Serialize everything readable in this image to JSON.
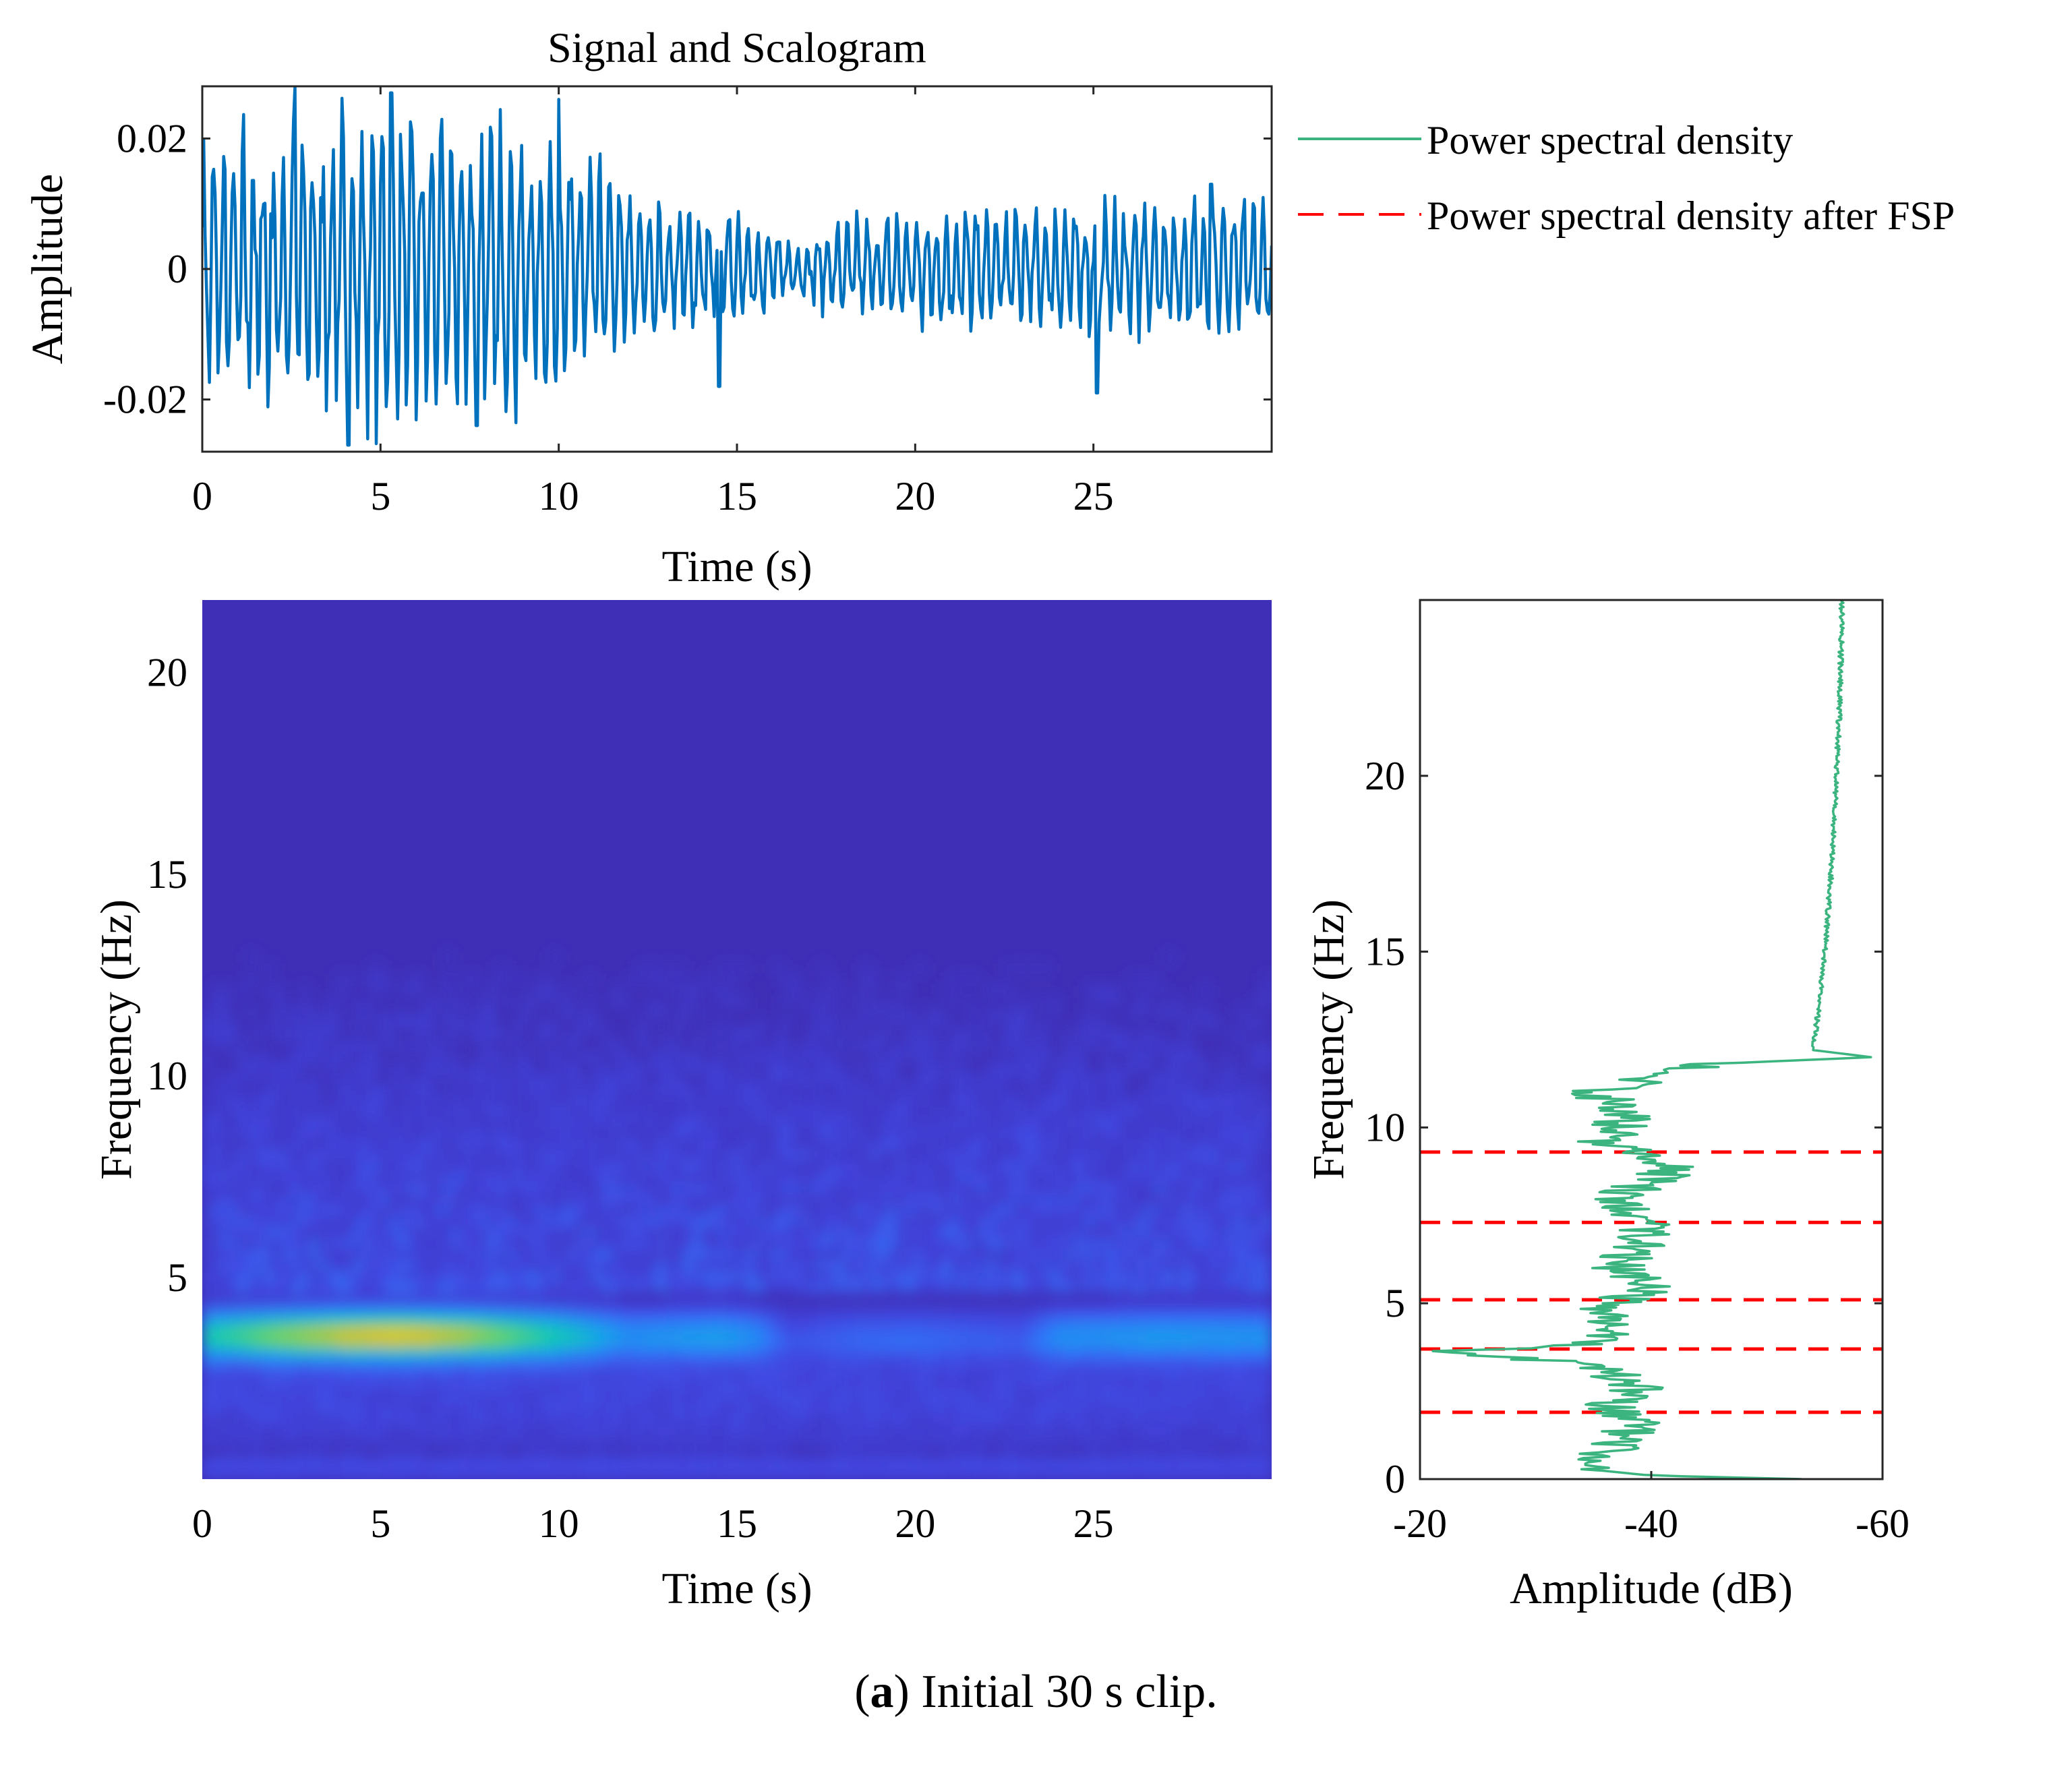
{
  "caption": {
    "letter": "a",
    "text": "Initial 30 s clip."
  },
  "chart_data": [
    {
      "type": "line",
      "id": "signal",
      "title": "Signal and Scalogram",
      "xlabel": "Time (s)",
      "ylabel": "Amplitude",
      "xlim": [
        0,
        30
      ],
      "ylim": [
        -0.028,
        0.028
      ],
      "xticks": [
        0,
        5,
        10,
        15,
        20,
        25
      ],
      "yticks": [
        0.02,
        0,
        -0.02
      ],
      "ytick_labels": [
        "0.02",
        "0",
        "-0.02"
      ],
      "color": "#0072BD",
      "sample_rate_hz": 25,
      "envelope": [
        {
          "t": 0,
          "a": 0.019
        },
        {
          "t": 2.5,
          "a": 0.021
        },
        {
          "t": 5,
          "a": 0.023
        },
        {
          "t": 8,
          "a": 0.021
        },
        {
          "t": 10,
          "a": 0.019
        },
        {
          "t": 12,
          "a": 0.011
        },
        {
          "t": 15,
          "a": 0.008
        },
        {
          "t": 16.5,
          "a": 0.004
        },
        {
          "t": 18,
          "a": 0.007
        },
        {
          "t": 21,
          "a": 0.009
        },
        {
          "t": 24,
          "a": 0.009
        },
        {
          "t": 27,
          "a": 0.01
        },
        {
          "t": 30,
          "a": 0.01
        }
      ],
      "dominant_frequency_hz": 3.6,
      "peaks": [
        {
          "t": 2.6,
          "y": 0.028
        },
        {
          "t": 4.1,
          "y": -0.027
        },
        {
          "t": 5.3,
          "y": 0.027
        },
        {
          "t": 7.7,
          "y": -0.024
        },
        {
          "t": 10.0,
          "y": 0.026
        },
        {
          "t": 14.5,
          "y": -0.018
        },
        {
          "t": 25.1,
          "y": -0.019
        },
        {
          "t": 28.3,
          "y": 0.013
        }
      ]
    },
    {
      "type": "heatmap",
      "id": "scalogram",
      "xlabel": "Time (s)",
      "ylabel": "Frequency (Hz)",
      "xlim": [
        0,
        30
      ],
      "ylim": [
        0,
        21.8
      ],
      "xticks": [
        0,
        5,
        10,
        15,
        20,
        25
      ],
      "yticks": [
        5,
        10,
        15,
        20
      ],
      "colormap": "parula",
      "band_center_hz": 3.6,
      "band_intensity": [
        {
          "t": 0,
          "v": 0.55
        },
        {
          "t": 2,
          "v": 0.7
        },
        {
          "t": 4,
          "v": 0.8
        },
        {
          "t": 5.5,
          "v": 0.84
        },
        {
          "t": 7.5,
          "v": 0.76
        },
        {
          "t": 10,
          "v": 0.55
        },
        {
          "t": 12,
          "v": 0.32
        },
        {
          "t": 14.5,
          "v": 0.38
        },
        {
          "t": 15.5,
          "v": 0.32
        },
        {
          "t": 16.5,
          "v": 0.12
        },
        {
          "t": 18,
          "v": 0.18
        },
        {
          "t": 20,
          "v": 0.2
        },
        {
          "t": 23,
          "v": 0.15
        },
        {
          "t": 24,
          "v": 0.32
        },
        {
          "t": 27,
          "v": 0.36
        },
        {
          "t": 30,
          "v": 0.34
        }
      ],
      "max_visible_hz": 14.5
    },
    {
      "type": "line",
      "id": "psd",
      "xlabel": "Amplitude (dB)",
      "ylabel": "Frequency (Hz)",
      "xlim": [
        -20,
        -60
      ],
      "ylim": [
        0,
        25
      ],
      "xticks": [
        -20,
        -40,
        -60
      ],
      "yticks": [
        0,
        5,
        10,
        15,
        20
      ],
      "series": [
        {
          "name": "Power spectral density",
          "color": "#3CB47F",
          "style": "solid",
          "points": [
            {
              "f": 0.0,
              "db": -53
            },
            {
              "f": 0.1,
              "db": -40
            },
            {
              "f": 0.3,
              "db": -34
            },
            {
              "f": 1.0,
              "db": -37
            },
            {
              "f": 1.6,
              "db": -39
            },
            {
              "f": 2.0,
              "db": -36
            },
            {
              "f": 2.6,
              "db": -39
            },
            {
              "f": 3.3,
              "db": -35
            },
            {
              "f": 3.6,
              "db": -21
            },
            {
              "f": 3.8,
              "db": -34
            },
            {
              "f": 4.4,
              "db": -37
            },
            {
              "f": 4.8,
              "db": -35
            },
            {
              "f": 5.4,
              "db": -40
            },
            {
              "f": 6.0,
              "db": -37
            },
            {
              "f": 7.0,
              "db": -40
            },
            {
              "f": 8.0,
              "db": -37
            },
            {
              "f": 8.8,
              "db": -42
            },
            {
              "f": 9.6,
              "db": -36
            },
            {
              "f": 10.4,
              "db": -38
            },
            {
              "f": 11.0,
              "db": -35
            },
            {
              "f": 11.8,
              "db": -45
            },
            {
              "f": 12.0,
              "db": -59
            },
            {
              "f": 12.2,
              "db": -54
            },
            {
              "f": 13.5,
              "db": -54.5
            },
            {
              "f": 15.0,
              "db": -55
            },
            {
              "f": 17.0,
              "db": -55.5
            },
            {
              "f": 20.0,
              "db": -56
            },
            {
              "f": 22.0,
              "db": -56.3
            },
            {
              "f": 25.0,
              "db": -56.5
            }
          ]
        },
        {
          "name": "Power spectral density after FSP",
          "color": "#FF0000",
          "style": "dashed",
          "hlines_hz": [
            9.3,
            7.3,
            5.1,
            3.7,
            1.9
          ]
        }
      ]
    }
  ]
}
